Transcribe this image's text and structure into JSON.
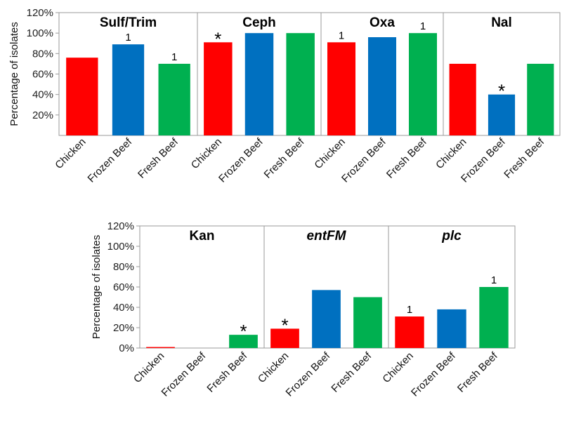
{
  "colors": {
    "Chicken": "#ff0000",
    "Frozen Beef": "#0070c0",
    "Fresh Beef": "#00b050"
  },
  "chart_data": [
    {
      "type": "bar",
      "ylabel": "Percentage of isolates",
      "ylim": [
        0,
        120
      ],
      "yticks": [
        "20%",
        "40%",
        "60%",
        "80%",
        "100%",
        "120%"
      ],
      "ytick_values": [
        20,
        40,
        60,
        80,
        100,
        120
      ],
      "categories": [
        "Chicken",
        "Frozen Beef",
        "Fresh Beef"
      ],
      "panels": [
        {
          "title": "Sulf/Trim",
          "italic": false,
          "values": [
            76,
            89,
            70
          ],
          "annotations": [
            "",
            "1",
            "1"
          ]
        },
        {
          "title": "Ceph",
          "italic": false,
          "values": [
            91,
            100,
            100
          ],
          "annotations": [
            "*",
            "",
            ""
          ]
        },
        {
          "title": "Oxa",
          "italic": false,
          "values": [
            91,
            96,
            100
          ],
          "annotations": [
            "1",
            "",
            "1"
          ]
        },
        {
          "title": "Nal",
          "italic": false,
          "values": [
            70,
            40,
            70
          ],
          "annotations": [
            "",
            "*",
            ""
          ]
        }
      ]
    },
    {
      "type": "bar",
      "ylabel": "Percentage of isolates",
      "ylim": [
        0,
        120
      ],
      "yticks": [
        "0%",
        "20%",
        "40%",
        "60%",
        "80%",
        "100%",
        "120%"
      ],
      "ytick_values": [
        0,
        20,
        40,
        60,
        80,
        100,
        120
      ],
      "categories": [
        "Chicken",
        "Frozen Beef",
        "Fresh Beef"
      ],
      "panels": [
        {
          "title": "Kan",
          "italic": false,
          "values": [
            1,
            0,
            13
          ],
          "annotations": [
            "",
            "",
            "*"
          ]
        },
        {
          "title": "entFM",
          "italic": true,
          "values": [
            19,
            57,
            50
          ],
          "annotations": [
            "*",
            "",
            ""
          ]
        },
        {
          "title": "plc",
          "italic": true,
          "values": [
            31,
            38,
            60
          ],
          "annotations": [
            "1",
            "",
            "1"
          ]
        }
      ]
    }
  ]
}
